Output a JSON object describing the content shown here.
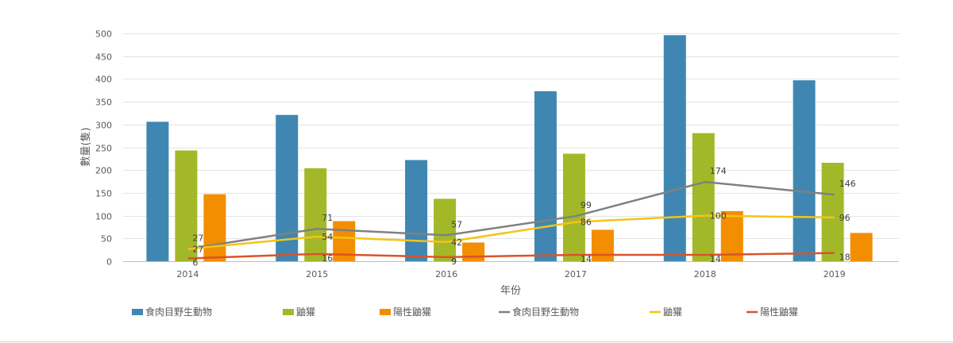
{
  "chart_data": {
    "type": "bar",
    "title": "",
    "xlabel": "年份",
    "ylabel": "數量(隻)",
    "ylim": [
      0,
      500
    ],
    "yticks": [
      0,
      50,
      100,
      150,
      200,
      250,
      300,
      350,
      400,
      450,
      500
    ],
    "grid": true,
    "legend_position": "bottom",
    "categories": [
      "2014",
      "2015",
      "2016",
      "2017",
      "2018",
      "2019"
    ],
    "bar_series": [
      {
        "name": "食肉目野生動物",
        "color": "#3f87b2",
        "values": [
          306,
          321,
          222,
          373,
          496,
          397
        ]
      },
      {
        "name": "鼬獾",
        "color": "#a3b829",
        "values": [
          243,
          204,
          137,
          236,
          281,
          216
        ]
      },
      {
        "name": "陽性鼬獾",
        "color": "#f28e00",
        "values": [
          147,
          88,
          41,
          69,
          110,
          62
        ]
      }
    ],
    "line_series": [
      {
        "name": "食肉目野生動物",
        "color": "#808080",
        "values": [
          27,
          71,
          57,
          99,
          174,
          146
        ]
      },
      {
        "name": "鼬獾",
        "color": "#f5c318",
        "values": [
          27,
          54,
          42,
          86,
          100,
          96
        ]
      },
      {
        "name": "陽性鼬獾",
        "color": "#d9542a",
        "values": [
          6,
          16,
          9,
          14,
          14,
          18
        ]
      }
    ]
  }
}
